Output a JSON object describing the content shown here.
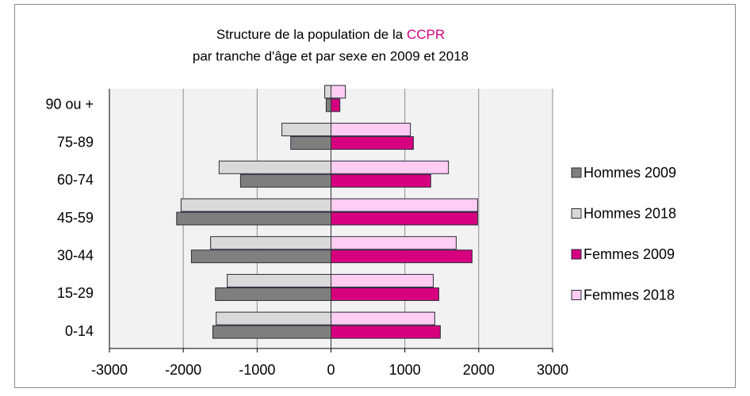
{
  "chart_data": {
    "type": "pyramid",
    "title": [
      "Structure de la population de la",
      "CCPR"
    ],
    "subtitle": "par tranche d'âge et par sexe en 2009 et  2018",
    "categories": [
      "0-14",
      "15-29",
      "30-44",
      "45-59",
      "60-74",
      "75-89",
      "90 ou +"
    ],
    "series": [
      {
        "name": "Hommes 2009",
        "color": "#7f7f7f",
        "values": [
          -1600,
          -1565,
          -1890,
          -2090,
          -1225,
          -545,
          -65
        ]
      },
      {
        "name": "Hommes 2018",
        "color": "#d9d9d9",
        "values": [
          -1555,
          -1405,
          -1630,
          -2030,
          -1515,
          -665,
          -85
        ]
      },
      {
        "name": "Femmes 2009",
        "color": "#d6007f",
        "values": [
          1480,
          1460,
          1910,
          1985,
          1350,
          1115,
          120
        ]
      },
      {
        "name": "Femmes 2018",
        "color": "#ffccf2",
        "values": [
          1405,
          1385,
          1695,
          1985,
          1590,
          1075,
          195
        ]
      }
    ],
    "xlim": [
      -3000,
      3000
    ],
    "xticks": [
      -3000,
      -2000,
      -1000,
      0,
      1000,
      2000,
      3000
    ],
    "grid": true,
    "legend": "right",
    "title_accent": "#d6007f"
  }
}
